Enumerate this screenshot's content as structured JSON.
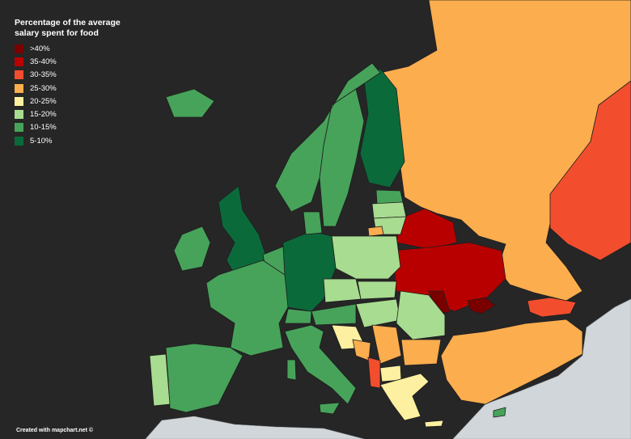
{
  "legend": {
    "title": "Percentage of the average salary spent for food",
    "items": [
      {
        "label": ">40%",
        "color": "#7a0000"
      },
      {
        "label": "35-40%",
        "color": "#b80000"
      },
      {
        "label": "30-35%",
        "color": "#f24e2e"
      },
      {
        "label": "25-30%",
        "color": "#fcad4e"
      },
      {
        "label": "20-25%",
        "color": "#fdf0a0"
      },
      {
        "label": "15-20%",
        "color": "#a8dc90"
      },
      {
        "label": "10-15%",
        "color": "#47a35a"
      },
      {
        "label": "5-10%",
        "color": "#0b6a3a"
      }
    ]
  },
  "footer": "Created with mapchart.net ©"
}
